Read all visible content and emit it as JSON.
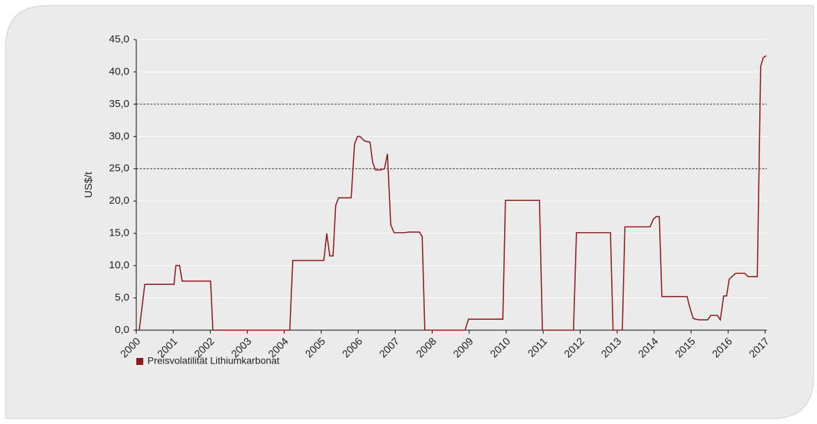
{
  "chart_data": {
    "type": "line",
    "y_label": "US$/t",
    "x": [
      2000.08,
      2000.23,
      2001.02,
      2001.07,
      2001.17,
      2001.24,
      2002.01,
      2002.07,
      2004.15,
      2004.23,
      2005.07,
      2005.15,
      2005.23,
      2005.32,
      2005.39,
      2005.47,
      2005.81,
      2005.9,
      2005.98,
      2006.05,
      2006.17,
      2006.32,
      2006.39,
      2006.47,
      2006.6,
      2006.71,
      2006.79,
      2006.88,
      2006.97,
      2007.27,
      2007.37,
      2007.65,
      2007.73,
      2007.8,
      2008.89,
      2008.98,
      2009.91,
      2009.98,
      2010.9,
      2010.98,
      2011.82,
      2011.9,
      2012.82,
      2012.89,
      2013.14,
      2013.21,
      2013.89,
      2013.98,
      2014.06,
      2014.14,
      2014.21,
      2014.89,
      2014.98,
      2015.06,
      2015.21,
      2015.45,
      2015.53,
      2015.71,
      2015.79,
      2015.88,
      2015.96,
      2016.03,
      2016.2,
      2016.45,
      2016.54,
      2016.79,
      2016.88,
      2016.95,
      2017.03
    ],
    "series": [
      {
        "name": "Preisvolatilität Lithiumkarbonat",
        "color": "#8b1a1a",
        "values": [
          0,
          7.1,
          7.1,
          10,
          10,
          7.6,
          7.6,
          0,
          0,
          10.8,
          10.8,
          15,
          11.5,
          11.5,
          19.3,
          20.5,
          20.5,
          28.8,
          30,
          30,
          29.3,
          29.1,
          26,
          24.8,
          24.8,
          25,
          27.3,
          16.3,
          15.1,
          15.1,
          15.2,
          15.2,
          14.5,
          0,
          0,
          1.7,
          1.7,
          20.1,
          20.1,
          0,
          0,
          15.1,
          15.1,
          0,
          0,
          16,
          16,
          17.2,
          17.6,
          17.6,
          5.2,
          5.2,
          3.2,
          1.8,
          1.6,
          1.6,
          2.3,
          2.3,
          1.6,
          5.3,
          5.3,
          7.9,
          8.8,
          8.8,
          8.3,
          8.3,
          40.8,
          42.2,
          42.5
        ]
      }
    ],
    "xlim": [
      2000,
      2017.05
    ],
    "xticks": [
      2000,
      2001,
      2002,
      2003,
      2004,
      2005,
      2006,
      2007,
      2008,
      2009,
      2010,
      2011,
      2012,
      2013,
      2014,
      2015,
      2016,
      2017
    ],
    "ylim": [
      0,
      45
    ],
    "yticks": [
      {
        "value": 0,
        "label": "0,0"
      },
      {
        "value": 5,
        "label": "5,0"
      },
      {
        "value": 10,
        "label": "10,0"
      },
      {
        "value": 15,
        "label": "15,0"
      },
      {
        "value": 20,
        "label": "20,0"
      },
      {
        "value": 25,
        "label": "25,0"
      },
      {
        "value": 30,
        "label": "30,0"
      },
      {
        "value": 35,
        "label": "35,0"
      },
      {
        "value": 40,
        "label": "40,0"
      },
      {
        "value": 45,
        "label": "45,0"
      }
    ],
    "grid": true,
    "reference_lines": [
      25,
      35
    ],
    "legend": "bottom-left"
  }
}
